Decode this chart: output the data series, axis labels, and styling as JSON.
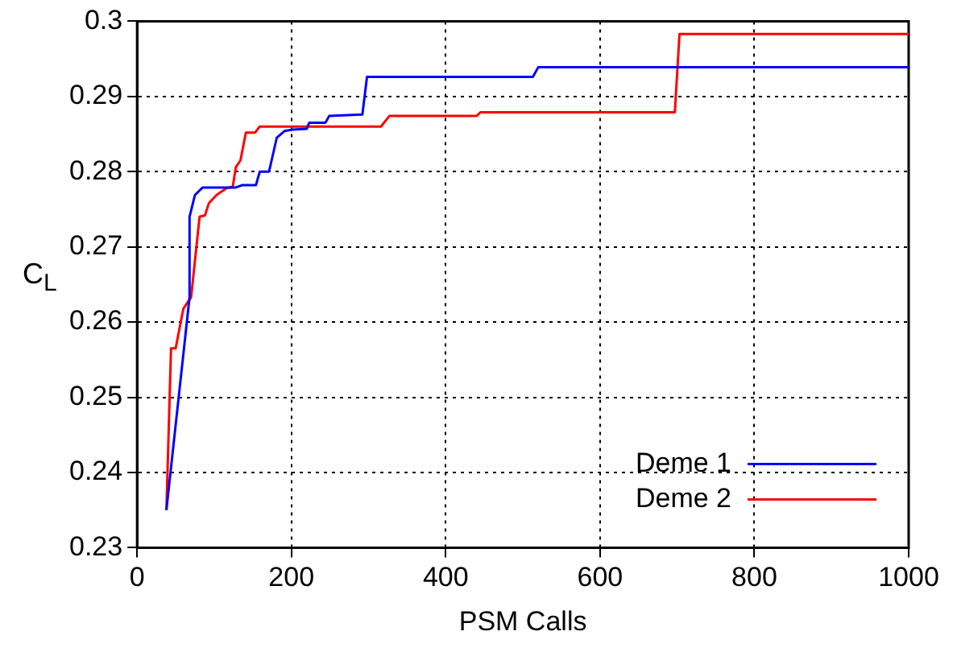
{
  "chart_data": {
    "type": "line",
    "xlabel": "PSM Calls",
    "ylabel": "C$_{L}$",
    "xlim": [
      0,
      1000
    ],
    "ylim": [
      0.23,
      0.3
    ],
    "xticks": [
      0,
      200,
      400,
      600,
      800,
      1000
    ],
    "yticks": [
      0.23,
      0.24,
      0.25,
      0.26,
      0.27,
      0.28,
      0.29,
      0.3
    ],
    "grid": true,
    "legend": "bottom right",
    "marker": "none",
    "line_style": "solid",
    "series": [
      {
        "name": "Deme 1",
        "color": "#0000ff",
        "x": [
          38,
          68,
          68,
          75,
          85,
          128,
          136,
          154,
          159,
          171,
          181,
          191,
          202,
          220,
          223,
          244,
          249,
          292,
          298,
          513,
          520,
          1000
        ],
        "values": [
          0.235,
          0.2633,
          0.274,
          0.2769,
          0.2779,
          0.2779,
          0.2782,
          0.2782,
          0.28,
          0.28,
          0.2845,
          0.2854,
          0.2856,
          0.2857,
          0.2865,
          0.2865,
          0.2874,
          0.2876,
          0.2926,
          0.2926,
          0.2939,
          0.2939
        ]
      },
      {
        "name": "Deme 2",
        "color": "#ff0000",
        "x": [
          38,
          44,
          50,
          60,
          70,
          81,
          88,
          93,
          103,
          116,
          124,
          128,
          134,
          141,
          153,
          159,
          316,
          327,
          440,
          445,
          697,
          703,
          1000
        ],
        "values": [
          0.235,
          0.2565,
          0.2565,
          0.2618,
          0.2633,
          0.274,
          0.2742,
          0.2758,
          0.2769,
          0.2778,
          0.278,
          0.2806,
          0.2815,
          0.2852,
          0.2852,
          0.286,
          0.286,
          0.2874,
          0.2874,
          0.2879,
          0.2879,
          0.2983,
          0.2983
        ]
      }
    ]
  }
}
